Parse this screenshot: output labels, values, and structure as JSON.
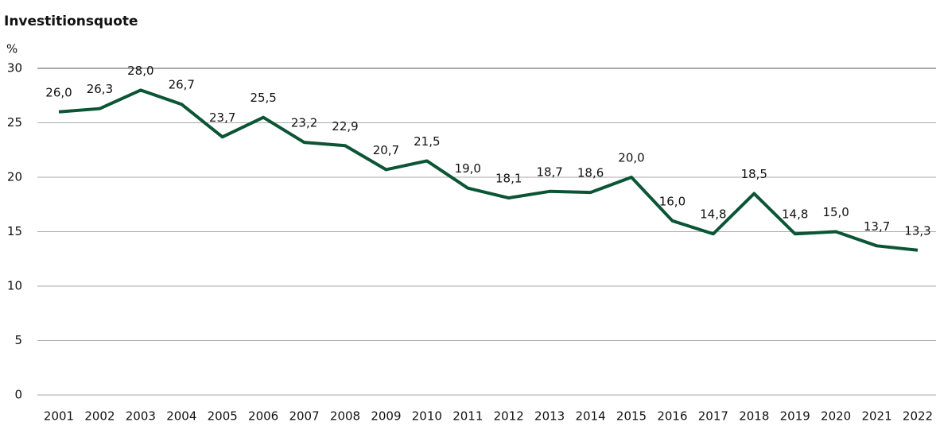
{
  "chart_data": {
    "type": "line",
    "title": "Investitionsquote",
    "y_label": "%",
    "categories": [
      "2001",
      "2002",
      "2003",
      "2004",
      "2005",
      "2006",
      "2007",
      "2008",
      "2009",
      "2010",
      "2011",
      "2012",
      "2013",
      "2014",
      "2015",
      "2016",
      "2017",
      "2018",
      "2019",
      "2020",
      "2021",
      "2022"
    ],
    "series": [
      {
        "name": "Investitionsquote",
        "color": "#0b5535",
        "values": [
          26.0,
          26.3,
          28.0,
          26.7,
          23.7,
          25.5,
          23.2,
          22.9,
          20.7,
          21.5,
          19.0,
          18.1,
          18.7,
          18.6,
          20.0,
          16.0,
          14.8,
          18.5,
          14.8,
          15.0,
          13.7,
          13.3
        ],
        "value_labels": [
          "26,0",
          "26,3",
          "28,0",
          "26,7",
          "23,7",
          "25,5",
          "23,2",
          "22,9",
          "20,7",
          "21,5",
          "19,0",
          "18,1",
          "18,7",
          "18,6",
          "20,0",
          "16,0",
          "14,8",
          "18,5",
          "14,8",
          "15,0",
          "13,7",
          "13,3"
        ]
      }
    ],
    "ylim": [
      0,
      30
    ],
    "yticks": [
      0,
      5,
      10,
      15,
      20,
      25,
      30
    ],
    "grid": true
  }
}
